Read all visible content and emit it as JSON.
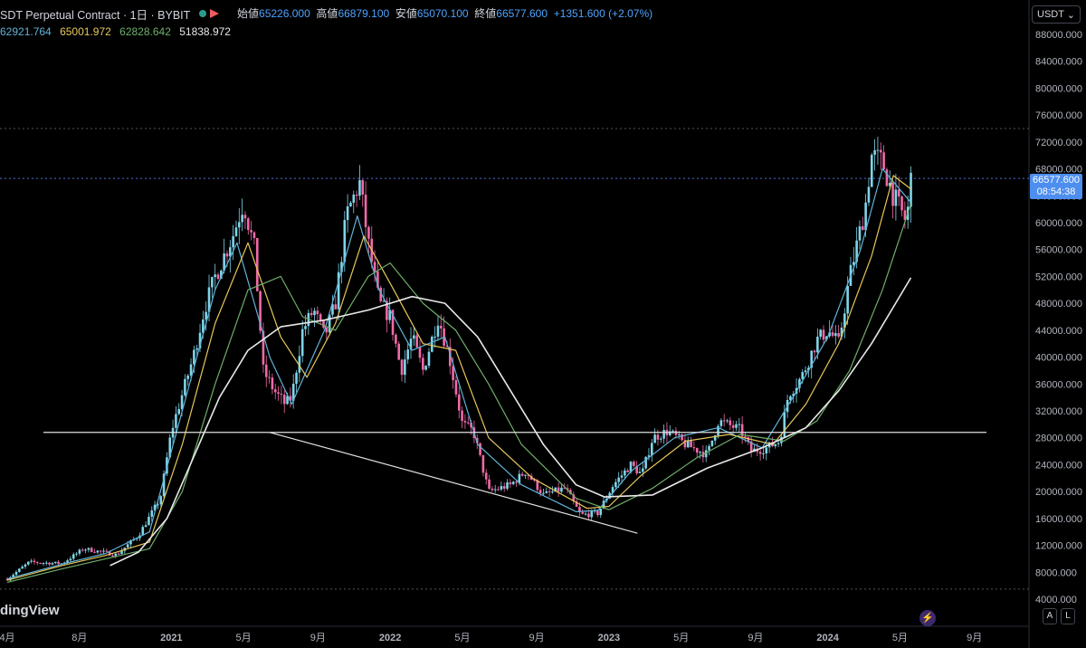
{
  "header": {
    "symbol": "SDT Perpetual Contract · 1日 · BYBIT",
    "ohlc": [
      {
        "label": "始値",
        "value": "65226.000"
      },
      {
        "label": "高値",
        "value": "66879.100"
      },
      {
        "label": "安値",
        "value": "65070.100"
      },
      {
        "label": "終値",
        "value": "66577.600"
      }
    ],
    "change": "+1351.600 (+2.07%)"
  },
  "moving_averages": [
    {
      "value": "62921.764",
      "color": "#5fb3d9"
    },
    {
      "value": "65001.972",
      "color": "#e6c85a"
    },
    {
      "value": "62828.642",
      "color": "#6fae6a"
    },
    {
      "value": "51838.972",
      "color": "#e8e8e8"
    }
  ],
  "currency": "USDT",
  "last_price": {
    "price": "66577.600",
    "countdown": "08:54:38"
  },
  "branding": "dingView",
  "buttons": {
    "auto": "A",
    "log": "L"
  },
  "chart_data": {
    "type": "candlestick",
    "y_axis": {
      "min": 4000,
      "max": 90000,
      "ticks": [
        "88000.000",
        "84000.000",
        "80000.000",
        "76000.000",
        "72000.000",
        "68000.000",
        "64000.000",
        "60000.000",
        "56000.000",
        "52000.000",
        "48000.000",
        "44000.000",
        "40000.000",
        "36000.000",
        "32000.000",
        "28000.000",
        "24000.000",
        "20000.000",
        "16000.000",
        "12000.000",
        "8000.000",
        "4000.000"
      ]
    },
    "x_axis": {
      "labels": [
        "4月",
        "8月",
        "2021",
        "5月",
        "9月",
        "2022",
        "5月",
        "9月",
        "2023",
        "5月",
        "9月",
        "2024",
        "5月",
        "9月"
      ]
    },
    "price_path": [
      [
        2020.25,
        7000
      ],
      [
        2020.35,
        9500
      ],
      [
        2020.5,
        9300
      ],
      [
        2020.6,
        11500
      ],
      [
        2020.75,
        10600
      ],
      [
        2020.85,
        13500
      ],
      [
        2020.95,
        19000
      ],
      [
        2021.0,
        29000
      ],
      [
        2021.1,
        40000
      ],
      [
        2021.15,
        47000
      ],
      [
        2021.2,
        52000
      ],
      [
        2021.28,
        58000
      ],
      [
        2021.33,
        63000
      ],
      [
        2021.38,
        56000
      ],
      [
        2021.42,
        38000
      ],
      [
        2021.47,
        35000
      ],
      [
        2021.52,
        33000
      ],
      [
        2021.55,
        34000
      ],
      [
        2021.6,
        44000
      ],
      [
        2021.65,
        47000
      ],
      [
        2021.7,
        43000
      ],
      [
        2021.75,
        48000
      ],
      [
        2021.8,
        61000
      ],
      [
        2021.86,
        66000
      ],
      [
        2021.9,
        57000
      ],
      [
        2021.95,
        48000
      ],
      [
        2022.0,
        46000
      ],
      [
        2022.05,
        38000
      ],
      [
        2022.1,
        43000
      ],
      [
        2022.15,
        38000
      ],
      [
        2022.22,
        46000
      ],
      [
        2022.27,
        40000
      ],
      [
        2022.33,
        30000
      ],
      [
        2022.38,
        29000
      ],
      [
        2022.45,
        20000
      ],
      [
        2022.55,
        21000
      ],
      [
        2022.62,
        23000
      ],
      [
        2022.7,
        19500
      ],
      [
        2022.8,
        20500
      ],
      [
        2022.87,
        16500
      ],
      [
        2022.95,
        16800
      ],
      [
        2023.02,
        21000
      ],
      [
        2023.1,
        24000
      ],
      [
        2023.15,
        22500
      ],
      [
        2023.2,
        28000
      ],
      [
        2023.27,
        29000
      ],
      [
        2023.35,
        27000
      ],
      [
        2023.45,
        25500
      ],
      [
        2023.5,
        30500
      ],
      [
        2023.6,
        29200
      ],
      [
        2023.65,
        26000
      ],
      [
        2023.72,
        26500
      ],
      [
        2023.78,
        27500
      ],
      [
        2023.82,
        34500
      ],
      [
        2023.88,
        37000
      ],
      [
        2023.95,
        42500
      ],
      [
        2024.0,
        44000
      ],
      [
        2024.05,
        42000
      ],
      [
        2024.1,
        52000
      ],
      [
        2024.17,
        62000
      ],
      [
        2024.2,
        70000
      ],
      [
        2024.25,
        69000
      ],
      [
        2024.3,
        64000
      ],
      [
        2024.36,
        60000
      ],
      [
        2024.38,
        66577
      ]
    ],
    "ma_series": {
      "fast": [
        [
          2020.25,
          7000
        ],
        [
          2020.5,
          9200
        ],
        [
          2020.7,
          10800
        ],
        [
          2020.9,
          14000
        ],
        [
          2021.05,
          32000
        ],
        [
          2021.2,
          50000
        ],
        [
          2021.3,
          57000
        ],
        [
          2021.45,
          40000
        ],
        [
          2021.55,
          33000
        ],
        [
          2021.7,
          44000
        ],
        [
          2021.85,
          61000
        ],
        [
          2021.95,
          50000
        ],
        [
          2022.1,
          41000
        ],
        [
          2022.25,
          43000
        ],
        [
          2022.4,
          27000
        ],
        [
          2022.6,
          21000
        ],
        [
          2022.85,
          17000
        ],
        [
          2022.95,
          17200
        ],
        [
          2023.1,
          23000
        ],
        [
          2023.3,
          28000
        ],
        [
          2023.5,
          29500
        ],
        [
          2023.7,
          26500
        ],
        [
          2023.85,
          34500
        ],
        [
          2024.0,
          43000
        ],
        [
          2024.15,
          56000
        ],
        [
          2024.25,
          68000
        ],
        [
          2024.38,
          63000
        ]
      ],
      "mid": [
        [
          2020.25,
          6800
        ],
        [
          2020.5,
          9000
        ],
        [
          2020.7,
          10500
        ],
        [
          2020.9,
          12500
        ],
        [
          2021.05,
          27000
        ],
        [
          2021.2,
          45000
        ],
        [
          2021.35,
          57000
        ],
        [
          2021.5,
          43000
        ],
        [
          2021.62,
          37000
        ],
        [
          2021.75,
          45000
        ],
        [
          2021.88,
          58000
        ],
        [
          2022.0,
          51000
        ],
        [
          2022.15,
          42000
        ],
        [
          2022.3,
          41000
        ],
        [
          2022.45,
          28000
        ],
        [
          2022.65,
          22000
        ],
        [
          2022.9,
          17500
        ],
        [
          2023.0,
          17800
        ],
        [
          2023.15,
          22500
        ],
        [
          2023.35,
          27500
        ],
        [
          2023.55,
          28500
        ],
        [
          2023.75,
          27000
        ],
        [
          2023.9,
          33000
        ],
        [
          2024.05,
          42000
        ],
        [
          2024.2,
          55000
        ],
        [
          2024.3,
          67000
        ],
        [
          2024.38,
          65000
        ]
      ],
      "slow": [
        [
          2020.25,
          6500
        ],
        [
          2020.5,
          8500
        ],
        [
          2020.7,
          10000
        ],
        [
          2020.9,
          11500
        ],
        [
          2021.05,
          20000
        ],
        [
          2021.2,
          36000
        ],
        [
          2021.35,
          50000
        ],
        [
          2021.5,
          52000
        ],
        [
          2021.6,
          46000
        ],
        [
          2021.75,
          44000
        ],
        [
          2021.9,
          52000
        ],
        [
          2022.0,
          54000
        ],
        [
          2022.15,
          48000
        ],
        [
          2022.3,
          44000
        ],
        [
          2022.45,
          36000
        ],
        [
          2022.6,
          27000
        ],
        [
          2022.85,
          19000
        ],
        [
          2023.0,
          17300
        ],
        [
          2023.2,
          20500
        ],
        [
          2023.4,
          25000
        ],
        [
          2023.6,
          28500
        ],
        [
          2023.8,
          27500
        ],
        [
          2023.95,
          30500
        ],
        [
          2024.1,
          38000
        ],
        [
          2024.25,
          50000
        ],
        [
          2024.38,
          62800
        ]
      ],
      "long": [
        [
          2020.72,
          9000
        ],
        [
          2020.85,
          11000
        ],
        [
          2020.98,
          16000
        ],
        [
          2021.1,
          25000
        ],
        [
          2021.22,
          34000
        ],
        [
          2021.35,
          41000
        ],
        [
          2021.5,
          44500
        ],
        [
          2021.7,
          45500
        ],
        [
          2021.9,
          47000
        ],
        [
          2022.1,
          49000
        ],
        [
          2022.25,
          48000
        ],
        [
          2022.4,
          43000
        ],
        [
          2022.55,
          35000
        ],
        [
          2022.7,
          27000
        ],
        [
          2022.85,
          21000
        ],
        [
          2022.98,
          19200
        ],
        [
          2023.2,
          19500
        ],
        [
          2023.45,
          23500
        ],
        [
          2023.7,
          26500
        ],
        [
          2023.9,
          29500
        ],
        [
          2024.05,
          35000
        ],
        [
          2024.2,
          42000
        ],
        [
          2024.38,
          51800
        ]
      ]
    },
    "lines": {
      "horizontal_support": 28800,
      "trendline": [
        [
          2021.45,
          28800
        ],
        [
          2023.13,
          13800
        ]
      ],
      "dotted_levels": [
        74000,
        66577,
        5500
      ]
    }
  }
}
